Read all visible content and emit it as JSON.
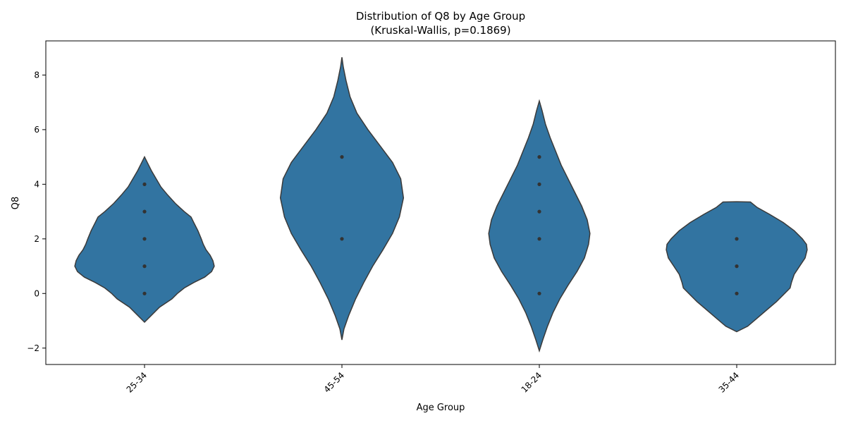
{
  "chart_data": {
    "type": "violin",
    "title_line1": "Distribution of Q8 by Age Group",
    "title_line2": "(Kruskal-Wallis, p=0.1869)",
    "xlabel": "Age Group",
    "ylabel": "Q8",
    "ylim": [
      -2.6,
      9.25
    ],
    "yticks": [
      -2,
      0,
      2,
      4,
      6,
      8
    ],
    "ytick_labels": [
      "−2",
      "0",
      "2",
      "4",
      "6",
      "8"
    ],
    "grid": false,
    "color": "#3274a1",
    "categories": [
      "25-34",
      "45-54",
      "18-24",
      "35-44"
    ],
    "violins": [
      {
        "category": "25-34",
        "points": [
          0,
          1,
          2,
          3,
          4
        ],
        "profile": [
          [
            -1.05,
            0.0
          ],
          [
            -0.8,
            0.1
          ],
          [
            -0.5,
            0.22
          ],
          [
            -0.2,
            0.4
          ],
          [
            0.0,
            0.48
          ],
          [
            0.2,
            0.58
          ],
          [
            0.4,
            0.72
          ],
          [
            0.6,
            0.88
          ],
          [
            0.8,
            0.98
          ],
          [
            1.0,
            1.02
          ],
          [
            1.2,
            1.0
          ],
          [
            1.4,
            0.96
          ],
          [
            1.6,
            0.9
          ],
          [
            1.8,
            0.86
          ],
          [
            2.0,
            0.83
          ],
          [
            2.3,
            0.78
          ],
          [
            2.6,
            0.72
          ],
          [
            2.8,
            0.68
          ],
          [
            3.0,
            0.58
          ],
          [
            3.3,
            0.45
          ],
          [
            3.6,
            0.34
          ],
          [
            3.9,
            0.24
          ],
          [
            4.2,
            0.17
          ],
          [
            4.5,
            0.1
          ],
          [
            4.8,
            0.04
          ],
          [
            5.0,
            0.0
          ]
        ]
      },
      {
        "category": "45-54",
        "points": [
          2,
          5
        ],
        "profile": [
          [
            -1.7,
            0.0
          ],
          [
            -1.3,
            0.03
          ],
          [
            -0.8,
            0.1
          ],
          [
            -0.2,
            0.2
          ],
          [
            0.4,
            0.32
          ],
          [
            1.0,
            0.45
          ],
          [
            1.6,
            0.6
          ],
          [
            2.2,
            0.74
          ],
          [
            2.8,
            0.84
          ],
          [
            3.5,
            0.9
          ],
          [
            4.2,
            0.86
          ],
          [
            4.8,
            0.74
          ],
          [
            5.4,
            0.56
          ],
          [
            6.0,
            0.38
          ],
          [
            6.6,
            0.22
          ],
          [
            7.2,
            0.12
          ],
          [
            7.8,
            0.06
          ],
          [
            8.3,
            0.02
          ],
          [
            8.65,
            0.0
          ]
        ]
      },
      {
        "category": "18-24",
        "points": [
          0,
          2,
          3,
          4,
          5
        ],
        "profile": [
          [
            -2.1,
            0.0
          ],
          [
            -1.7,
            0.05
          ],
          [
            -1.2,
            0.12
          ],
          [
            -0.7,
            0.2
          ],
          [
            -0.2,
            0.3
          ],
          [
            0.3,
            0.42
          ],
          [
            0.8,
            0.55
          ],
          [
            1.3,
            0.66
          ],
          [
            1.8,
            0.72
          ],
          [
            2.2,
            0.74
          ],
          [
            2.7,
            0.7
          ],
          [
            3.2,
            0.62
          ],
          [
            3.7,
            0.52
          ],
          [
            4.2,
            0.42
          ],
          [
            4.7,
            0.32
          ],
          [
            5.2,
            0.24
          ],
          [
            5.7,
            0.16
          ],
          [
            6.2,
            0.09
          ],
          [
            6.7,
            0.04
          ],
          [
            7.05,
            0.0
          ]
        ]
      },
      {
        "category": "35-44",
        "points": [
          0,
          1,
          2
        ],
        "profile": [
          [
            -1.4,
            0.0
          ],
          [
            -1.2,
            0.16
          ],
          [
            -0.9,
            0.3
          ],
          [
            -0.6,
            0.44
          ],
          [
            -0.3,
            0.58
          ],
          [
            0.0,
            0.7
          ],
          [
            0.2,
            0.78
          ],
          [
            0.4,
            0.8
          ],
          [
            0.7,
            0.84
          ],
          [
            1.0,
            0.92
          ],
          [
            1.3,
            1.0
          ],
          [
            1.6,
            1.03
          ],
          [
            1.8,
            1.02
          ],
          [
            2.0,
            0.96
          ],
          [
            2.3,
            0.84
          ],
          [
            2.6,
            0.68
          ],
          [
            2.9,
            0.48
          ],
          [
            3.15,
            0.3
          ],
          [
            3.35,
            0.2
          ],
          [
            3.36,
            0.0
          ]
        ]
      }
    ]
  }
}
